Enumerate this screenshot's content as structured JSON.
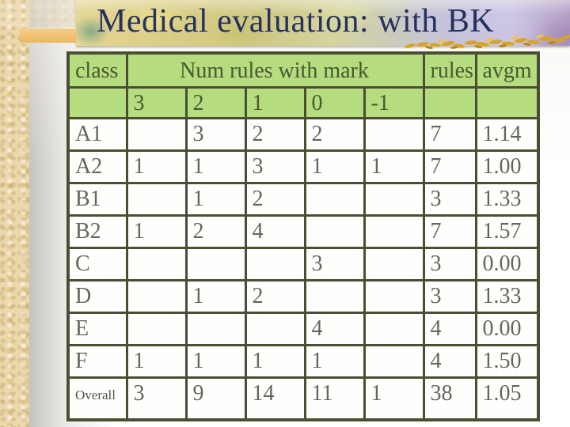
{
  "slide": {
    "title": "Medical evaluation: with BK"
  },
  "table": {
    "header": {
      "class_label": "class",
      "group_label": "Num rules with mark",
      "rules_label": "rules",
      "avgm_label": "avgm",
      "mark_values": [
        "3",
        "2",
        "1",
        "0",
        "-1"
      ]
    },
    "rows": [
      {
        "class": "A1",
        "marks": [
          "",
          "3",
          "2",
          "2",
          ""
        ],
        "rules": "7",
        "avgm": "1.14"
      },
      {
        "class": "A2",
        "marks": [
          "1",
          "1",
          "3",
          "1",
          "1"
        ],
        "rules": "7",
        "avgm": "1.00"
      },
      {
        "class": "B1",
        "marks": [
          "",
          "1",
          "2",
          "",
          ""
        ],
        "rules": "3",
        "avgm": "1.33"
      },
      {
        "class": "B2",
        "marks": [
          "1",
          "2",
          "4",
          "",
          ""
        ],
        "rules": "7",
        "avgm": "1.57"
      },
      {
        "class": "C",
        "marks": [
          "",
          "",
          "",
          "3",
          ""
        ],
        "rules": "3",
        "avgm": "0.00"
      },
      {
        "class": "D",
        "marks": [
          "",
          "1",
          "2",
          "",
          ""
        ],
        "rules": "3",
        "avgm": "1.33"
      },
      {
        "class": "E",
        "marks": [
          "",
          "",
          "",
          "4",
          ""
        ],
        "rules": "4",
        "avgm": "0.00"
      },
      {
        "class": "F",
        "marks": [
          "1",
          "1",
          "1",
          "1",
          ""
        ],
        "rules": "4",
        "avgm": "1.50"
      },
      {
        "class": "Overall",
        "marks": [
          "3",
          "9",
          "14",
          "11",
          "1"
        ],
        "rules": "38",
        "avgm": "1.05"
      }
    ]
  },
  "colors": {
    "header_green": "#b5dc7e",
    "table_border": "#4a4f33",
    "title_text": "#26325e",
    "sand_border": "#ebd8ab",
    "orange_accent": "#f3c379",
    "wheat_gold": "#d8a41f"
  }
}
